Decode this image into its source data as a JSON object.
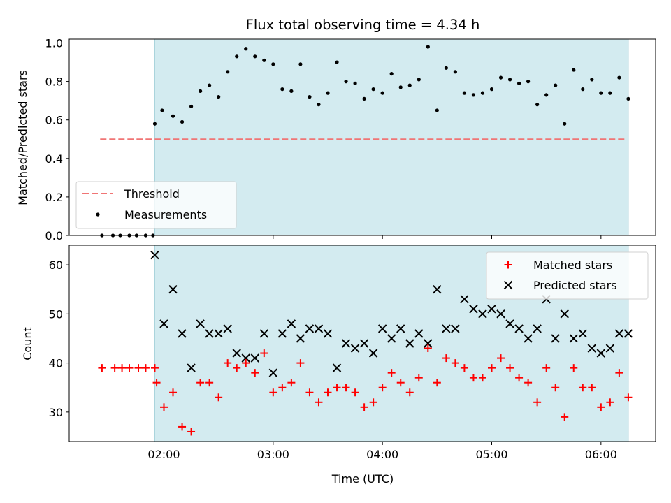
{
  "title": "Flux total observing time = 4.34 h",
  "colors": {
    "observing_span": "#d3ebf0",
    "threshold": "#f07575",
    "measurements": "#000000",
    "matched": "#ff0000",
    "predicted": "#000000"
  },
  "chart_data": [
    {
      "type": "scatter",
      "panel": "top",
      "ylabel": "Matched/Predicted stars",
      "xlim": [
        "01:08",
        "06:30"
      ],
      "ylim": [
        0.0,
        1.02
      ],
      "yticks": [
        "0.0",
        "0.2",
        "0.4",
        "0.6",
        "0.8",
        "1.0"
      ],
      "yticks_values": [
        0.0,
        0.2,
        0.4,
        0.6,
        0.8,
        1.0
      ],
      "xticks": [
        "02:00",
        "03:00",
        "04:00",
        "05:00",
        "06:00"
      ],
      "xticks_values": [
        "02:00",
        "03:00",
        "04:00",
        "05:00",
        "06:00"
      ],
      "observing_span": [
        "01:55",
        "06:15"
      ],
      "legend": {
        "placement": "lower-left",
        "entries": [
          {
            "label": "Threshold",
            "marker": "dashed-line"
          },
          {
            "label": "Measurements",
            "marker": "dot"
          }
        ]
      },
      "threshold": {
        "name": "Threshold",
        "value": 0.5,
        "x": [
          "01:25",
          "06:13"
        ]
      },
      "series": [
        {
          "name": "Measurements",
          "x": [
            "01:26",
            "01:32",
            "01:36",
            "01:41",
            "01:45",
            "01:50",
            "01:54",
            "01:55",
            "01:59",
            "02:05",
            "02:10",
            "02:15",
            "02:20",
            "02:25",
            "02:30",
            "02:35",
            "02:40",
            "02:45",
            "02:50",
            "02:55",
            "03:00",
            "03:05",
            "03:10",
            "03:15",
            "03:20",
            "03:25",
            "03:30",
            "03:35",
            "03:40",
            "03:45",
            "03:50",
            "03:55",
            "04:00",
            "04:05",
            "04:10",
            "04:15",
            "04:20",
            "04:25",
            "04:30",
            "04:35",
            "04:40",
            "04:45",
            "04:50",
            "04:55",
            "05:00",
            "05:05",
            "05:10",
            "05:15",
            "05:20",
            "05:25",
            "05:30",
            "05:35",
            "05:40",
            "05:45",
            "05:50",
            "05:55",
            "06:00",
            "06:05",
            "06:10",
            "06:15"
          ],
          "y": [
            0.0,
            0.0,
            0.0,
            0.0,
            0.0,
            0.0,
            0.0,
            0.58,
            0.65,
            0.62,
            0.59,
            0.67,
            0.75,
            0.78,
            0.72,
            0.85,
            0.93,
            0.97,
            0.93,
            0.91,
            0.89,
            0.76,
            0.75,
            0.89,
            0.72,
            0.68,
            0.74,
            0.9,
            0.8,
            0.79,
            0.71,
            0.76,
            0.74,
            0.84,
            0.77,
            0.78,
            0.81,
            0.98,
            0.65,
            0.87,
            0.85,
            0.74,
            0.73,
            0.74,
            0.76,
            0.82,
            0.81,
            0.79,
            0.8,
            0.68,
            0.73,
            0.78,
            0.58,
            0.86,
            0.76,
            0.81,
            0.74,
            0.74,
            0.82,
            0.71
          ]
        }
      ]
    },
    {
      "type": "scatter",
      "panel": "bottom",
      "xlabel": "Time (UTC)",
      "ylabel": "Count",
      "xlim": [
        "01:08",
        "06:30"
      ],
      "ylim": [
        24,
        64
      ],
      "yticks": [
        "30",
        "40",
        "50",
        "60"
      ],
      "yticks_values": [
        30,
        40,
        50,
        60
      ],
      "xticks": [
        "02:00",
        "03:00",
        "04:00",
        "05:00",
        "06:00"
      ],
      "xticks_values": [
        "02:00",
        "03:00",
        "04:00",
        "05:00",
        "06:00"
      ],
      "observing_span": [
        "01:55",
        "06:15"
      ],
      "legend": {
        "placement": "upper-right",
        "entries": [
          {
            "label": "Matched stars",
            "marker": "plus"
          },
          {
            "label": "Predicted stars",
            "marker": "x"
          }
        ]
      },
      "series": [
        {
          "name": "Matched stars",
          "marker": "plus",
          "x": [
            "01:26",
            "01:33",
            "01:37",
            "01:41",
            "01:46",
            "01:50",
            "01:55",
            "01:56",
            "02:00",
            "02:05",
            "02:10",
            "02:15",
            "02:20",
            "02:25",
            "02:30",
            "02:35",
            "02:40",
            "02:45",
            "02:50",
            "02:55",
            "03:00",
            "03:05",
            "03:10",
            "03:15",
            "03:20",
            "03:25",
            "03:30",
            "03:35",
            "03:40",
            "03:45",
            "03:50",
            "03:55",
            "04:00",
            "04:05",
            "04:10",
            "04:15",
            "04:20",
            "04:25",
            "04:30",
            "04:35",
            "04:40",
            "04:45",
            "04:50",
            "04:55",
            "05:00",
            "05:05",
            "05:10",
            "05:15",
            "05:20",
            "05:25",
            "05:30",
            "05:35",
            "05:40",
            "05:45",
            "05:50",
            "05:55",
            "06:00",
            "06:05",
            "06:10",
            "06:15"
          ],
          "y": [
            39,
            39,
            39,
            39,
            39,
            39,
            39,
            36,
            31,
            34,
            27,
            26,
            36,
            36,
            33,
            40,
            39,
            40,
            38,
            42,
            34,
            35,
            36,
            40,
            34,
            32,
            34,
            35,
            35,
            34,
            31,
            32,
            35,
            38,
            36,
            34,
            37,
            43,
            36,
            41,
            40,
            39,
            37,
            37,
            39,
            41,
            39,
            37,
            36,
            32,
            39,
            35,
            29,
            39,
            35,
            35,
            31,
            32,
            38,
            33
          ]
        },
        {
          "name": "Predicted stars",
          "marker": "x",
          "x": [
            "01:55",
            "02:00",
            "02:05",
            "02:10",
            "02:15",
            "02:20",
            "02:25",
            "02:30",
            "02:35",
            "02:40",
            "02:45",
            "02:50",
            "02:55",
            "03:00",
            "03:05",
            "03:10",
            "03:15",
            "03:20",
            "03:25",
            "03:30",
            "03:35",
            "03:40",
            "03:45",
            "03:50",
            "03:55",
            "04:00",
            "04:05",
            "04:10",
            "04:15",
            "04:20",
            "04:25",
            "04:30",
            "04:35",
            "04:40",
            "04:45",
            "04:50",
            "04:55",
            "05:00",
            "05:05",
            "05:10",
            "05:15",
            "05:20",
            "05:25",
            "05:30",
            "05:35",
            "05:40",
            "05:45",
            "05:50",
            "05:55",
            "06:00",
            "06:05",
            "06:10",
            "06:15"
          ],
          "y": [
            62,
            48,
            55,
            46,
            39,
            48,
            46,
            46,
            47,
            42,
            41,
            41,
            46,
            38,
            46,
            48,
            45,
            47,
            47,
            46,
            39,
            44,
            43,
            44,
            42,
            47,
            45,
            47,
            44,
            46,
            44,
            55,
            47,
            47,
            53,
            51,
            50,
            51,
            50,
            48,
            47,
            45,
            47,
            53,
            45,
            50,
            45,
            46,
            43,
            42,
            43,
            46,
            46
          ]
        }
      ]
    }
  ]
}
